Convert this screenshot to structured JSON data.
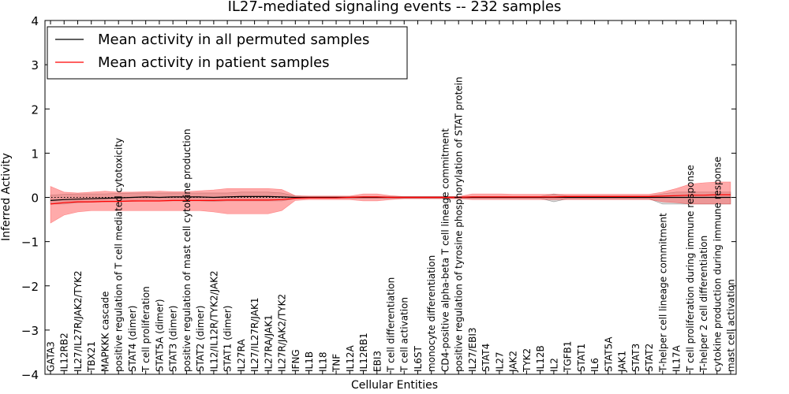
{
  "chart_data": {
    "type": "line",
    "title": "IL27-mediated signaling events -- 232 samples",
    "xlabel": "Cellular Entities",
    "ylabel": "Inferred Activity",
    "ylim": [
      -4,
      4
    ],
    "yticks": [
      -4,
      -3,
      -2,
      -1,
      0,
      1,
      2,
      3,
      4
    ],
    "ytick_labels": [
      "−4",
      "−3",
      "−2",
      "−1",
      "0",
      "1",
      "2",
      "3",
      "4"
    ],
    "legend_position": "top-left",
    "categories": [
      "GATA3",
      "IL12RB2",
      "IL27/IL27R/JAK2/TYK2",
      "TBX21",
      "MAPKKK cascade",
      "positive regulation of T cell mediated cytotoxicity",
      "STAT4 (dimer)",
      "T cell proliferation",
      "STAT5A (dimer)",
      "STAT3 (dimer)",
      "positive regulation of mast cell cytokine production",
      "STAT2 (dimer)",
      "IL12/IL12R/TYK2/JAK2",
      "STAT1 (dimer)",
      "IL27RA",
      "IL27/IL27R/JAK1",
      "IL27RA/JAK1",
      "IL27R/JAK2/TYK2",
      "IFNG",
      "IL1B",
      "IL18",
      "TNF",
      "IL12A",
      "IL12RB1",
      "EBI3",
      "T cell differentiation",
      "T cell activation",
      "IL6ST",
      "monocyte differentiation",
      "CD4-positive alpha-beta T cell lineage commitment",
      "positive regulation of tyrosine phosphorylation of STAT protein",
      "IL27/EBI3",
      "STAT4",
      "IL27",
      "JAK2",
      "TYK2",
      "IL12B",
      "IL2",
      "TGFB1",
      "STAT1",
      "IL6",
      "STAT5A",
      "JAK1",
      "STAT3",
      "STAT2",
      "T-helper cell lineage commitment",
      "IL17A",
      "T cell proliferation during immune response",
      "T-helper 2 cell differentiation",
      "cytokine production during immune response",
      "mast cell activation"
    ],
    "series": [
      {
        "name": "Mean activity in all permuted samples",
        "color": "#000000",
        "fill": "#aaaaaa",
        "values": [
          -0.07,
          -0.05,
          -0.04,
          -0.03,
          -0.02,
          -0.01,
          0.0,
          0.01,
          0.0,
          0.01,
          0.01,
          0.01,
          0.0,
          0.01,
          0.02,
          0.02,
          0.02,
          0.01,
          0.0,
          0.0,
          0.0,
          0.0,
          0.0,
          0.0,
          0.0,
          0.0,
          0.0,
          0.0,
          0.0,
          0.0,
          0.0,
          0.0,
          0.0,
          0.0,
          0.0,
          0.0,
          0.0,
          0.0,
          0.0,
          0.0,
          0.0,
          0.0,
          0.0,
          0.0,
          0.0,
          0.0,
          0.0,
          0.0,
          0.0,
          0.0,
          0.0
        ],
        "lower": [
          -0.15,
          -0.15,
          -0.12,
          -0.11,
          -0.1,
          -0.09,
          -0.09,
          -0.08,
          -0.08,
          -0.08,
          -0.08,
          -0.08,
          -0.09,
          -0.08,
          -0.08,
          -0.08,
          -0.08,
          -0.08,
          -0.03,
          -0.02,
          -0.02,
          -0.02,
          -0.02,
          -0.02,
          -0.02,
          -0.02,
          -0.02,
          -0.02,
          -0.02,
          -0.02,
          -0.02,
          -0.02,
          -0.02,
          -0.02,
          -0.02,
          -0.02,
          -0.02,
          -0.1,
          -0.03,
          -0.03,
          -0.03,
          -0.03,
          -0.03,
          -0.03,
          -0.03,
          -0.15,
          -0.15,
          -0.15,
          -0.15,
          -0.15,
          -0.15
        ],
        "upper": [
          0.05,
          0.07,
          0.08,
          0.08,
          0.08,
          0.09,
          0.1,
          0.1,
          0.1,
          0.1,
          0.1,
          0.1,
          0.1,
          0.1,
          0.12,
          0.12,
          0.12,
          0.1,
          0.03,
          0.02,
          0.02,
          0.02,
          0.02,
          0.02,
          0.02,
          0.02,
          0.02,
          0.02,
          0.02,
          0.02,
          0.02,
          0.02,
          0.02,
          0.02,
          0.02,
          0.02,
          0.02,
          0.08,
          0.03,
          0.03,
          0.03,
          0.03,
          0.03,
          0.03,
          0.03,
          0.08,
          0.12,
          0.12,
          0.12,
          0.12,
          0.12
        ]
      },
      {
        "name": "Mean activity in patient samples",
        "color": "#ff0000",
        "fill": "#ff5555",
        "values": [
          -0.15,
          -0.12,
          -0.1,
          -0.1,
          -0.09,
          -0.09,
          -0.08,
          -0.08,
          -0.08,
          -0.07,
          -0.07,
          -0.07,
          -0.07,
          -0.06,
          -0.06,
          -0.06,
          -0.06,
          -0.05,
          -0.02,
          -0.01,
          -0.01,
          -0.01,
          0.0,
          0.01,
          0.01,
          0.0,
          0.0,
          0.0,
          0.0,
          0.0,
          0.0,
          0.01,
          0.01,
          0.01,
          0.01,
          0.01,
          0.01,
          0.01,
          0.02,
          0.02,
          0.02,
          0.02,
          0.02,
          0.02,
          0.02,
          0.03,
          0.04,
          0.05,
          0.05,
          0.06,
          0.06
        ],
        "lower": [
          -0.58,
          -0.4,
          -0.33,
          -0.3,
          -0.3,
          -0.3,
          -0.3,
          -0.3,
          -0.3,
          -0.3,
          -0.3,
          -0.3,
          -0.33,
          -0.37,
          -0.37,
          -0.37,
          -0.37,
          -0.3,
          -0.07,
          -0.05,
          -0.05,
          -0.05,
          -0.05,
          -0.08,
          -0.08,
          -0.05,
          -0.03,
          -0.03,
          -0.03,
          -0.03,
          -0.03,
          -0.05,
          -0.05,
          -0.05,
          -0.05,
          -0.05,
          -0.05,
          -0.05,
          -0.05,
          -0.05,
          -0.05,
          -0.05,
          -0.05,
          -0.05,
          -0.05,
          -0.1,
          -0.12,
          -0.15,
          -0.15,
          -0.15,
          -0.15
        ],
        "upper": [
          0.25,
          0.12,
          0.1,
          0.12,
          0.14,
          0.12,
          0.12,
          0.13,
          0.14,
          0.13,
          0.13,
          0.15,
          0.17,
          0.2,
          0.2,
          0.2,
          0.2,
          0.18,
          0.04,
          0.03,
          0.03,
          0.03,
          0.03,
          0.08,
          0.08,
          0.04,
          0.02,
          0.02,
          0.02,
          0.02,
          0.02,
          0.08,
          0.08,
          0.08,
          0.07,
          0.07,
          0.07,
          0.07,
          0.07,
          0.07,
          0.07,
          0.07,
          0.07,
          0.07,
          0.07,
          0.12,
          0.2,
          0.3,
          0.33,
          0.35,
          0.35
        ]
      }
    ]
  }
}
